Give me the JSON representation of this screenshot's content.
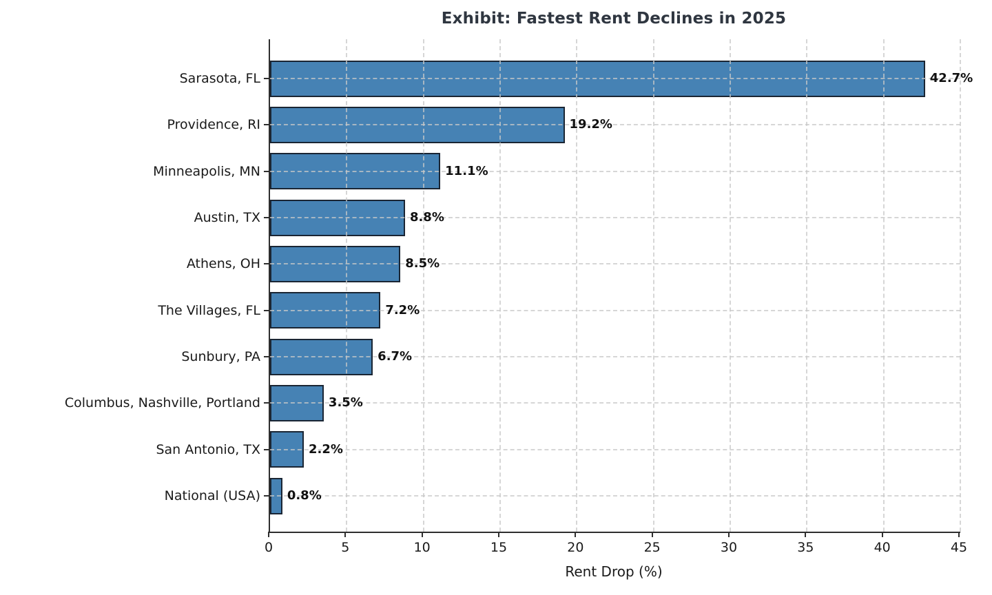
{
  "chart_data": {
    "type": "bar",
    "orientation": "horizontal",
    "title": "Exhibit: Fastest Rent Declines in 2025",
    "xlabel": "Rent Drop (%)",
    "ylabel": "",
    "categories": [
      "Sarasota, FL",
      "Providence, RI",
      "Minneapolis, MN",
      "Austin, TX",
      "Athens, OH",
      "The Villages, FL",
      "Sunbury, PA",
      "Columbus, Nashville, Portland",
      "San Antonio, TX",
      "National (USA)"
    ],
    "values": [
      42.7,
      19.2,
      11.1,
      8.8,
      8.5,
      7.2,
      6.7,
      3.5,
      2.2,
      0.8
    ],
    "value_labels": [
      "42.7%",
      "19.2%",
      "11.1%",
      "8.8%",
      "8.5%",
      "7.2%",
      "6.7%",
      "3.5%",
      "2.2%",
      "0.8%"
    ],
    "x_ticks": [
      0,
      5,
      10,
      15,
      20,
      25,
      30,
      35,
      40,
      45
    ],
    "xlim": [
      0,
      45
    ],
    "grid": "dashed-both-axes",
    "legend": "none",
    "colors": {
      "bar_fill": "#4682b4",
      "bar_edge": "#1a2533",
      "grid": "#c8c8c8",
      "title_text": "#2f3640",
      "axis_text": "#1a1a1a",
      "spine": "#2e2e2e"
    }
  }
}
